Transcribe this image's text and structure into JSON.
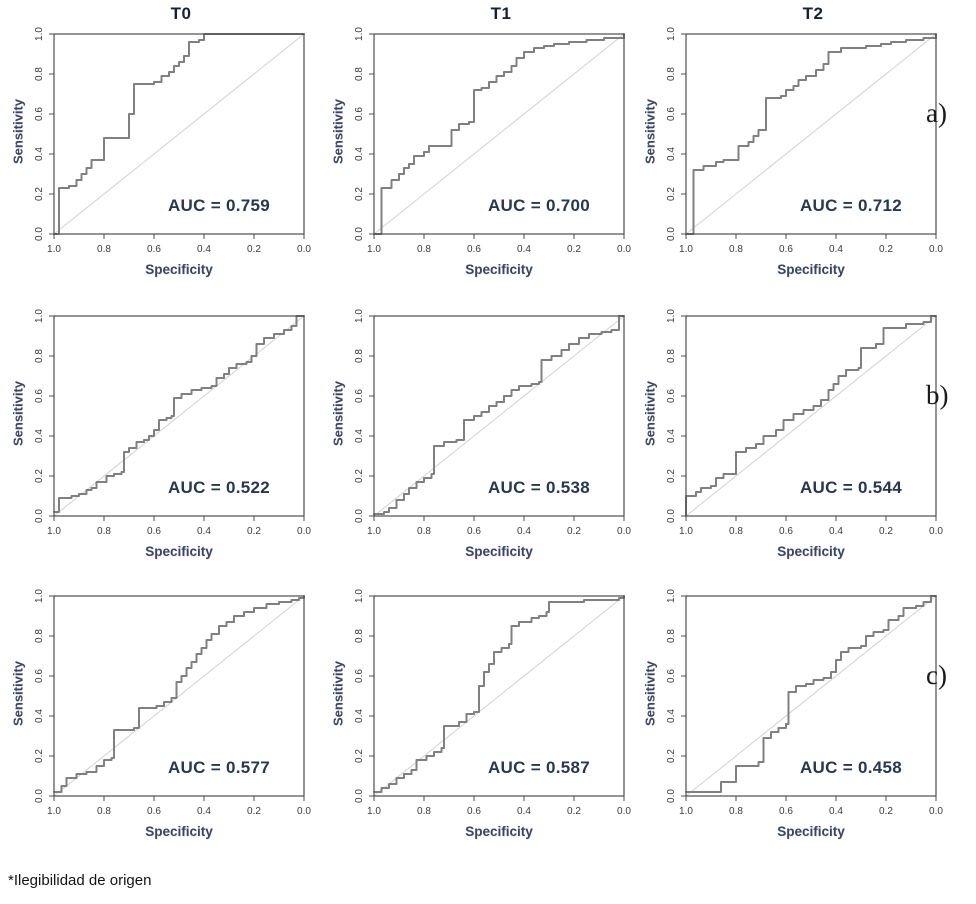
{
  "page": {
    "footnote": "*Ilegibilidad de origen"
  },
  "columns": [
    "T0",
    "T1",
    "T2"
  ],
  "row_labels": [
    "a)",
    "b)",
    "c)"
  ],
  "axis": {
    "x_label": "Specificity",
    "y_label": "Sensitivity",
    "x_ticks": [
      "1.0",
      "0.8",
      "0.6",
      "0.4",
      "0.2",
      "0.0"
    ],
    "y_ticks": [
      "0.0",
      "0.2",
      "0.4",
      "0.6",
      "0.8",
      "1.0"
    ],
    "x_range_note": "x axis reversed: specificity 1.0 at left to 0.0 at right",
    "grid": "off"
  },
  "colors": {
    "curve": "#808080",
    "diagonal": "#d2d2d2",
    "box": "#4d4d4d",
    "auc_text": "#263750",
    "axis_label": "#35466b",
    "title": "#15203a",
    "tick_text": "#3b3b3b"
  },
  "chart_data": [
    {
      "type": "line",
      "panel": "a-T0",
      "title": "T0",
      "row": "a)",
      "auc": 0.759,
      "auc_label": "AUC = 0.759",
      "points": [
        [
          1.0,
          0.0
        ],
        [
          0.98,
          0.05
        ],
        [
          0.98,
          0.23
        ],
        [
          0.94,
          0.24
        ],
        [
          0.91,
          0.27
        ],
        [
          0.89,
          0.3
        ],
        [
          0.87,
          0.33
        ],
        [
          0.85,
          0.37
        ],
        [
          0.8,
          0.37
        ],
        [
          0.8,
          0.48
        ],
        [
          0.7,
          0.48
        ],
        [
          0.7,
          0.6
        ],
        [
          0.68,
          0.62
        ],
        [
          0.68,
          0.75
        ],
        [
          0.6,
          0.76
        ],
        [
          0.57,
          0.79
        ],
        [
          0.54,
          0.81
        ],
        [
          0.52,
          0.84
        ],
        [
          0.5,
          0.86
        ],
        [
          0.48,
          0.89
        ],
        [
          0.46,
          0.92
        ],
        [
          0.46,
          0.96
        ],
        [
          0.42,
          0.97
        ],
        [
          0.4,
          1.0
        ],
        [
          0.0,
          1.0
        ]
      ]
    },
    {
      "type": "line",
      "panel": "a-T1",
      "title": "T1",
      "row": "a)",
      "auc": 0.7,
      "auc_label": "AUC = 0.700",
      "points": [
        [
          1.0,
          0.0
        ],
        [
          0.97,
          0.03
        ],
        [
          0.97,
          0.23
        ],
        [
          0.93,
          0.27
        ],
        [
          0.9,
          0.3
        ],
        [
          0.88,
          0.33
        ],
        [
          0.86,
          0.35
        ],
        [
          0.84,
          0.39
        ],
        [
          0.8,
          0.41
        ],
        [
          0.78,
          0.44
        ],
        [
          0.7,
          0.44
        ],
        [
          0.69,
          0.52
        ],
        [
          0.66,
          0.55
        ],
        [
          0.62,
          0.56
        ],
        [
          0.6,
          0.57
        ],
        [
          0.6,
          0.72
        ],
        [
          0.57,
          0.73
        ],
        [
          0.54,
          0.76
        ],
        [
          0.51,
          0.79
        ],
        [
          0.48,
          0.81
        ],
        [
          0.45,
          0.84
        ],
        [
          0.43,
          0.88
        ],
        [
          0.4,
          0.91
        ],
        [
          0.36,
          0.93
        ],
        [
          0.32,
          0.94
        ],
        [
          0.28,
          0.95
        ],
        [
          0.22,
          0.96
        ],
        [
          0.15,
          0.97
        ],
        [
          0.08,
          0.98
        ],
        [
          0.02,
          0.98
        ],
        [
          0.0,
          1.0
        ]
      ]
    },
    {
      "type": "line",
      "panel": "a-T2",
      "title": "T2",
      "row": "a)",
      "auc": 0.712,
      "auc_label": "AUC = 0.712",
      "points": [
        [
          1.0,
          0.0
        ],
        [
          0.97,
          0.03
        ],
        [
          0.97,
          0.32
        ],
        [
          0.93,
          0.34
        ],
        [
          0.9,
          0.34
        ],
        [
          0.88,
          0.36
        ],
        [
          0.85,
          0.37
        ],
        [
          0.8,
          0.37
        ],
        [
          0.79,
          0.44
        ],
        [
          0.75,
          0.46
        ],
        [
          0.73,
          0.49
        ],
        [
          0.71,
          0.52
        ],
        [
          0.68,
          0.54
        ],
        [
          0.68,
          0.68
        ],
        [
          0.62,
          0.69
        ],
        [
          0.6,
          0.72
        ],
        [
          0.57,
          0.74
        ],
        [
          0.55,
          0.77
        ],
        [
          0.52,
          0.79
        ],
        [
          0.48,
          0.82
        ],
        [
          0.45,
          0.85
        ],
        [
          0.43,
          0.91
        ],
        [
          0.38,
          0.93
        ],
        [
          0.33,
          0.93
        ],
        [
          0.28,
          0.94
        ],
        [
          0.22,
          0.95
        ],
        [
          0.18,
          0.96
        ],
        [
          0.12,
          0.97
        ],
        [
          0.05,
          0.98
        ],
        [
          0.0,
          1.0
        ]
      ]
    },
    {
      "type": "line",
      "panel": "b-T0",
      "title": "T0",
      "row": "b)",
      "auc": 0.522,
      "auc_label": "AUC = 0.522",
      "points": [
        [
          1.0,
          0.02
        ],
        [
          0.98,
          0.04
        ],
        [
          0.98,
          0.09
        ],
        [
          0.93,
          0.1
        ],
        [
          0.9,
          0.11
        ],
        [
          0.87,
          0.13
        ],
        [
          0.85,
          0.14
        ],
        [
          0.83,
          0.17
        ],
        [
          0.8,
          0.17
        ],
        [
          0.79,
          0.2
        ],
        [
          0.76,
          0.21
        ],
        [
          0.73,
          0.22
        ],
        [
          0.72,
          0.32
        ],
        [
          0.7,
          0.34
        ],
        [
          0.67,
          0.37
        ],
        [
          0.64,
          0.38
        ],
        [
          0.62,
          0.4
        ],
        [
          0.6,
          0.43
        ],
        [
          0.58,
          0.48
        ],
        [
          0.55,
          0.49
        ],
        [
          0.53,
          0.5
        ],
        [
          0.52,
          0.59
        ],
        [
          0.49,
          0.61
        ],
        [
          0.45,
          0.63
        ],
        [
          0.41,
          0.64
        ],
        [
          0.37,
          0.65
        ],
        [
          0.35,
          0.69
        ],
        [
          0.32,
          0.71
        ],
        [
          0.3,
          0.74
        ],
        [
          0.27,
          0.76
        ],
        [
          0.23,
          0.77
        ],
        [
          0.21,
          0.8
        ],
        [
          0.19,
          0.86
        ],
        [
          0.16,
          0.89
        ],
        [
          0.12,
          0.91
        ],
        [
          0.08,
          0.93
        ],
        [
          0.05,
          0.95
        ],
        [
          0.03,
          1.0
        ],
        [
          0.0,
          1.0
        ]
      ]
    },
    {
      "type": "line",
      "panel": "b-T1",
      "title": "T1",
      "row": "b)",
      "auc": 0.538,
      "auc_label": "AUC = 0.538",
      "points": [
        [
          1.0,
          0.01
        ],
        [
          0.96,
          0.02
        ],
        [
          0.94,
          0.04
        ],
        [
          0.91,
          0.08
        ],
        [
          0.88,
          0.11
        ],
        [
          0.86,
          0.14
        ],
        [
          0.83,
          0.17
        ],
        [
          0.8,
          0.19
        ],
        [
          0.77,
          0.21
        ],
        [
          0.76,
          0.22
        ],
        [
          0.76,
          0.35
        ],
        [
          0.72,
          0.37
        ],
        [
          0.67,
          0.38
        ],
        [
          0.64,
          0.48
        ],
        [
          0.6,
          0.5
        ],
        [
          0.57,
          0.52
        ],
        [
          0.54,
          0.55
        ],
        [
          0.51,
          0.57
        ],
        [
          0.48,
          0.6
        ],
        [
          0.45,
          0.63
        ],
        [
          0.42,
          0.65
        ],
        [
          0.37,
          0.66
        ],
        [
          0.34,
          0.67
        ],
        [
          0.33,
          0.78
        ],
        [
          0.29,
          0.8
        ],
        [
          0.25,
          0.83
        ],
        [
          0.22,
          0.86
        ],
        [
          0.18,
          0.89
        ],
        [
          0.14,
          0.91
        ],
        [
          0.09,
          0.92
        ],
        [
          0.05,
          0.93
        ],
        [
          0.02,
          0.94
        ],
        [
          0.02,
          1.0
        ],
        [
          0.0,
          1.0
        ]
      ]
    },
    {
      "type": "line",
      "panel": "b-T2",
      "title": "T2",
      "row": "b)",
      "auc": 0.544,
      "auc_label": "AUC = 0.544",
      "points": [
        [
          1.0,
          0.0
        ],
        [
          1.0,
          0.1
        ],
        [
          0.96,
          0.12
        ],
        [
          0.94,
          0.14
        ],
        [
          0.9,
          0.15
        ],
        [
          0.88,
          0.19
        ],
        [
          0.85,
          0.21
        ],
        [
          0.8,
          0.22
        ],
        [
          0.8,
          0.32
        ],
        [
          0.76,
          0.34
        ],
        [
          0.72,
          0.36
        ],
        [
          0.69,
          0.4
        ],
        [
          0.64,
          0.43
        ],
        [
          0.61,
          0.48
        ],
        [
          0.57,
          0.51
        ],
        [
          0.53,
          0.53
        ],
        [
          0.49,
          0.55
        ],
        [
          0.46,
          0.58
        ],
        [
          0.43,
          0.63
        ],
        [
          0.41,
          0.66
        ],
        [
          0.39,
          0.7
        ],
        [
          0.36,
          0.73
        ],
        [
          0.31,
          0.74
        ],
        [
          0.3,
          0.84
        ],
        [
          0.24,
          0.86
        ],
        [
          0.21,
          0.94
        ],
        [
          0.12,
          0.96
        ],
        [
          0.05,
          0.97
        ],
        [
          0.02,
          1.0
        ],
        [
          0.0,
          1.0
        ]
      ]
    },
    {
      "type": "line",
      "panel": "c-T0",
      "title": "T0",
      "row": "c)",
      "auc": 0.577,
      "auc_label": "AUC = 0.577",
      "points": [
        [
          1.0,
          0.02
        ],
        [
          0.97,
          0.05
        ],
        [
          0.95,
          0.09
        ],
        [
          0.91,
          0.11
        ],
        [
          0.87,
          0.12
        ],
        [
          0.83,
          0.15
        ],
        [
          0.8,
          0.18
        ],
        [
          0.77,
          0.19
        ],
        [
          0.76,
          0.22
        ],
        [
          0.76,
          0.33
        ],
        [
          0.68,
          0.34
        ],
        [
          0.66,
          0.44
        ],
        [
          0.59,
          0.45
        ],
        [
          0.56,
          0.47
        ],
        [
          0.53,
          0.49
        ],
        [
          0.51,
          0.57
        ],
        [
          0.49,
          0.6
        ],
        [
          0.47,
          0.64
        ],
        [
          0.45,
          0.67
        ],
        [
          0.43,
          0.71
        ],
        [
          0.41,
          0.74
        ],
        [
          0.39,
          0.78
        ],
        [
          0.37,
          0.81
        ],
        [
          0.34,
          0.85
        ],
        [
          0.31,
          0.87
        ],
        [
          0.28,
          0.9
        ],
        [
          0.24,
          0.92
        ],
        [
          0.2,
          0.94
        ],
        [
          0.15,
          0.96
        ],
        [
          0.1,
          0.97
        ],
        [
          0.05,
          0.98
        ],
        [
          0.02,
          0.99
        ],
        [
          0.0,
          1.0
        ]
      ]
    },
    {
      "type": "line",
      "panel": "c-T1",
      "title": "T1",
      "row": "c)",
      "auc": 0.587,
      "auc_label": "AUC = 0.587",
      "points": [
        [
          1.0,
          0.02
        ],
        [
          0.97,
          0.04
        ],
        [
          0.94,
          0.06
        ],
        [
          0.91,
          0.09
        ],
        [
          0.88,
          0.11
        ],
        [
          0.85,
          0.13
        ],
        [
          0.83,
          0.18
        ],
        [
          0.79,
          0.2
        ],
        [
          0.76,
          0.22
        ],
        [
          0.73,
          0.24
        ],
        [
          0.72,
          0.35
        ],
        [
          0.66,
          0.37
        ],
        [
          0.63,
          0.41
        ],
        [
          0.6,
          0.42
        ],
        [
          0.58,
          0.55
        ],
        [
          0.56,
          0.62
        ],
        [
          0.54,
          0.66
        ],
        [
          0.52,
          0.72
        ],
        [
          0.49,
          0.74
        ],
        [
          0.46,
          0.76
        ],
        [
          0.45,
          0.85
        ],
        [
          0.42,
          0.87
        ],
        [
          0.37,
          0.89
        ],
        [
          0.34,
          0.9
        ],
        [
          0.31,
          0.92
        ],
        [
          0.3,
          0.97
        ],
        [
          0.22,
          0.97
        ],
        [
          0.16,
          0.98
        ],
        [
          0.08,
          0.98
        ],
        [
          0.02,
          0.99
        ],
        [
          0.0,
          1.0
        ]
      ]
    },
    {
      "type": "line",
      "panel": "c-T2",
      "title": "T2",
      "row": "c)",
      "auc": 0.458,
      "auc_label": "AUC = 0.458",
      "points": [
        [
          1.0,
          0.02
        ],
        [
          0.88,
          0.02
        ],
        [
          0.86,
          0.07
        ],
        [
          0.8,
          0.08
        ],
        [
          0.8,
          0.15
        ],
        [
          0.71,
          0.17
        ],
        [
          0.69,
          0.29
        ],
        [
          0.66,
          0.32
        ],
        [
          0.63,
          0.34
        ],
        [
          0.6,
          0.36
        ],
        [
          0.59,
          0.52
        ],
        [
          0.56,
          0.55
        ],
        [
          0.52,
          0.56
        ],
        [
          0.49,
          0.58
        ],
        [
          0.45,
          0.59
        ],
        [
          0.42,
          0.62
        ],
        [
          0.4,
          0.68
        ],
        [
          0.38,
          0.72
        ],
        [
          0.35,
          0.74
        ],
        [
          0.3,
          0.75
        ],
        [
          0.28,
          0.8
        ],
        [
          0.25,
          0.82
        ],
        [
          0.21,
          0.83
        ],
        [
          0.19,
          0.88
        ],
        [
          0.15,
          0.9
        ],
        [
          0.13,
          0.94
        ],
        [
          0.08,
          0.95
        ],
        [
          0.05,
          0.97
        ],
        [
          0.02,
          1.0
        ],
        [
          0.0,
          1.0
        ]
      ]
    }
  ]
}
